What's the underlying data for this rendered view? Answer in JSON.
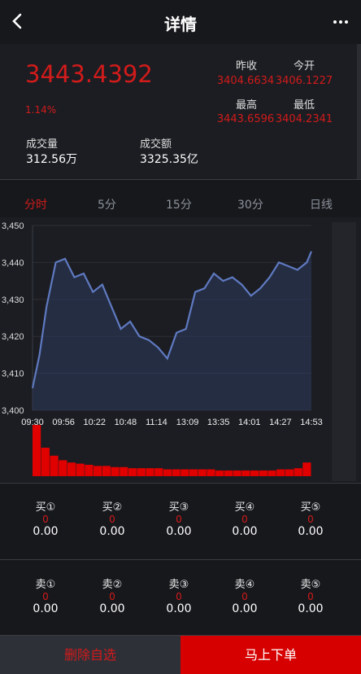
{
  "header": {
    "title": "详情",
    "back_icon": "chevron-left-icon",
    "more_icon": "ellipsis-icon"
  },
  "quote": {
    "price": "3443.4392",
    "change_pct": "1.14%",
    "prev_close_label": "昨收",
    "prev_close": "3404.6634",
    "open_label": "今开",
    "open": "3406.1227",
    "high_label": "最高",
    "high": "3443.6596",
    "low_label": "最低",
    "low": "3404.2341",
    "volume_label": "成交量",
    "volume": "312.56万",
    "turnover_label": "成交额",
    "turnover": "3325.35亿"
  },
  "tabs": [
    {
      "label": "分时",
      "active": true
    },
    {
      "label": "5分",
      "active": false
    },
    {
      "label": "15分",
      "active": false
    },
    {
      "label": "30分",
      "active": false
    },
    {
      "label": "日线",
      "active": false
    }
  ],
  "chart_data": {
    "type": "area",
    "title": "",
    "xlabel": "",
    "ylabel": "",
    "y_ticks": [
      "3,450",
      "3,440",
      "3,430",
      "3,420",
      "3,410",
      "3,400"
    ],
    "x_ticks": [
      "09:30",
      "09:56",
      "10:22",
      "10:48",
      "11:14",
      "13:09",
      "13:35",
      "14:01",
      "14:27",
      "14:53"
    ],
    "ylim": [
      3400,
      3450
    ],
    "x": [
      0,
      3,
      6,
      10,
      14,
      18,
      22,
      26,
      30,
      34,
      38,
      42,
      46,
      50,
      54,
      58,
      62,
      66,
      70,
      74,
      78,
      82,
      86,
      90,
      94,
      98,
      102,
      106,
      110,
      114,
      118,
      120
    ],
    "values": [
      3406,
      3415,
      3428,
      3440,
      3441,
      3436,
      3437,
      3432,
      3434,
      3428,
      3422,
      3424,
      3420,
      3419,
      3417,
      3414,
      3421,
      3422,
      3432,
      3433,
      3437,
      3435,
      3436,
      3434,
      3431,
      3433,
      3436,
      3440,
      3439,
      3438,
      3440,
      3443
    ],
    "volume": [
      45,
      25,
      18,
      14,
      12,
      11,
      10,
      9,
      9,
      8,
      8,
      7,
      7,
      7,
      7,
      6,
      6,
      6,
      6,
      6,
      6,
      5,
      5,
      5,
      5,
      5,
      5,
      5,
      6,
      6,
      7,
      12
    ],
    "line_color": "#5f7ac1",
    "fill_color": "#2e3a5e",
    "volume_color": "#e00000",
    "grid": true
  },
  "orderbook": {
    "buy": [
      {
        "label": "买①",
        "qty": "0",
        "price": "0.00"
      },
      {
        "label": "买②",
        "qty": "0",
        "price": "0.00"
      },
      {
        "label": "买③",
        "qty": "0",
        "price": "0.00"
      },
      {
        "label": "买④",
        "qty": "0",
        "price": "0.00"
      },
      {
        "label": "买⑤",
        "qty": "0",
        "price": "0.00"
      }
    ],
    "sell": [
      {
        "label": "卖①",
        "qty": "0",
        "price": "0.00"
      },
      {
        "label": "卖②",
        "qty": "0",
        "price": "0.00"
      },
      {
        "label": "卖③",
        "qty": "0",
        "price": "0.00"
      },
      {
        "label": "卖④",
        "qty": "0",
        "price": "0.00"
      },
      {
        "label": "卖⑤",
        "qty": "0",
        "price": "0.00"
      }
    ]
  },
  "footer": {
    "remove_label": "删除自选",
    "order_label": "马上下单"
  }
}
